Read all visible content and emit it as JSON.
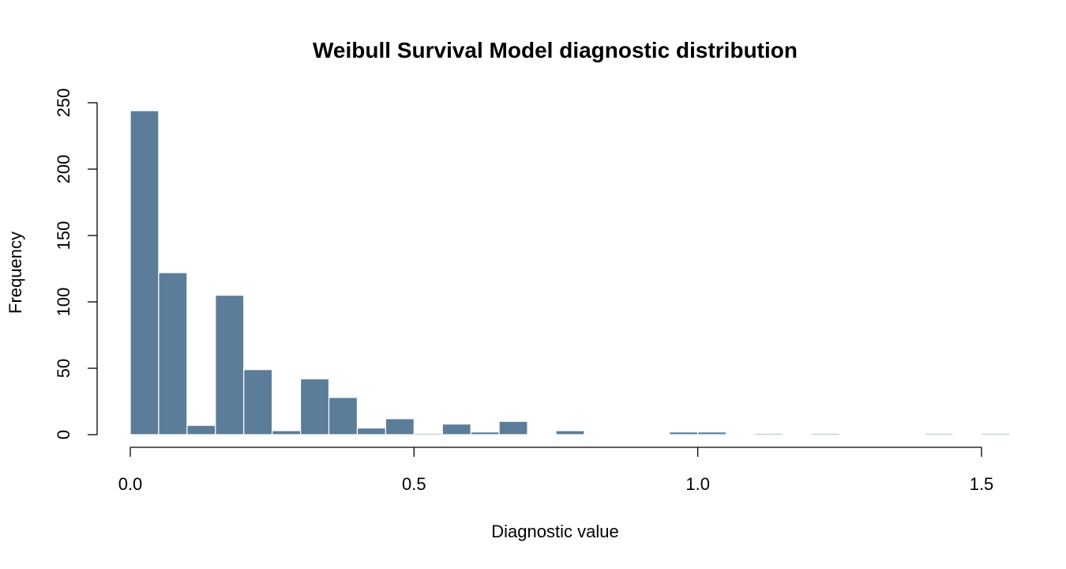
{
  "chart_data": {
    "type": "bar",
    "subtype": "histogram",
    "title": "Weibull Survival Model diagnostic distribution",
    "xlabel": "Diagnostic value",
    "ylabel": "Frequency",
    "bin_width": 0.05,
    "bin_start": 0.0,
    "counts": [
      244,
      122,
      7,
      105,
      49,
      3,
      42,
      28,
      5,
      12,
      1,
      8,
      2,
      10,
      0,
      3,
      0,
      0,
      0,
      2,
      2,
      0,
      1,
      0,
      1,
      0,
      0,
      0,
      1,
      0,
      1
    ],
    "xlim": [
      0,
      1.5
    ],
    "ylim": [
      0,
      250
    ],
    "x_ticks": [
      "0.0",
      "0.5",
      "1.0",
      "1.5"
    ],
    "x_tick_values": [
      0,
      0.5,
      1.0,
      1.5
    ],
    "y_ticks": [
      "0",
      "50",
      "100",
      "150",
      "200",
      "250"
    ],
    "y_tick_values": [
      0,
      50,
      100,
      150,
      200,
      250
    ],
    "bar_color": "#5b7d99",
    "bar_edge_color": "#ffffff",
    "grid": false
  }
}
